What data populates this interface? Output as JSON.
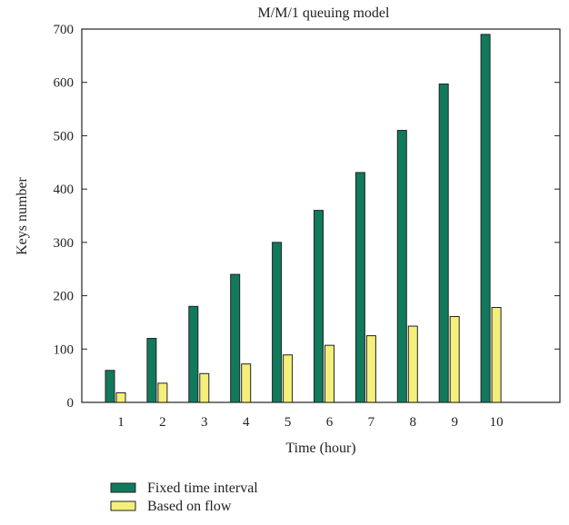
{
  "chart_data": {
    "type": "bar",
    "title": "M/M/1 queuing model",
    "xlabel": "Time (hour)",
    "ylabel": "Keys number",
    "categories": [
      "1",
      "2",
      "3",
      "4",
      "5",
      "6",
      "7",
      "8",
      "9",
      "10"
    ],
    "ylim": [
      0,
      700
    ],
    "yticks": [
      "0",
      "100",
      "200",
      "300",
      "400",
      "500",
      "600",
      "700"
    ],
    "grid": false,
    "legend_position": "bottom-left",
    "series": [
      {
        "name": "Fixed time interval",
        "color": "#127a5c",
        "values": [
          60,
          120,
          180,
          240,
          300,
          360,
          431,
          510,
          597,
          690
        ]
      },
      {
        "name": "Based on flow",
        "color": "#f4ef7a",
        "values": [
          18,
          36,
          54,
          72,
          89,
          107,
          125,
          143,
          161,
          178
        ]
      }
    ]
  }
}
